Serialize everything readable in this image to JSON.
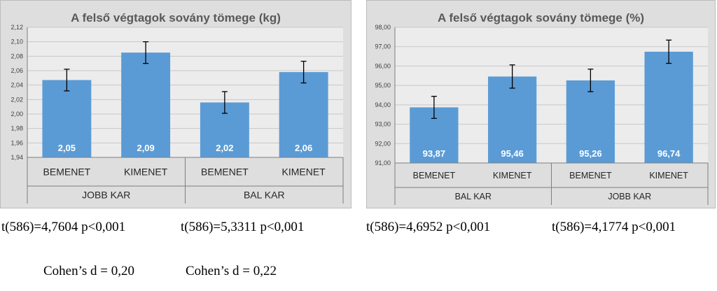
{
  "chart_data": [
    {
      "type": "bar",
      "title": "A felső végtagok sovány tömege (kg)",
      "categories": [
        "BEMENET",
        "KIMENET",
        "BEMENET",
        "KIMENET"
      ],
      "groups": [
        "JOBB KAR",
        "BAL KAR"
      ],
      "values": [
        2.047,
        2.085,
        2.016,
        2.058
      ],
      "value_labels": [
        "2,05",
        "2,09",
        "2,02",
        "2,06"
      ],
      "error": [
        0.015,
        0.015,
        0.015,
        0.015
      ],
      "ylim": [
        1.94,
        2.12
      ],
      "yticks": [
        "1,94",
        "1,96",
        "1,98",
        "2,00",
        "2,02",
        "2,04",
        "2,06",
        "2,08",
        "2,10",
        "2,12"
      ],
      "grid": true,
      "bar_color": "#5b9bd5"
    },
    {
      "type": "bar",
      "title": "A felső végtagok sovány tömege (%)",
      "categories": [
        "BEMENET",
        "KIMENET",
        "BEMENET",
        "KIMENET"
      ],
      "groups": [
        "BAL KAR",
        "JOBB KAR"
      ],
      "values": [
        93.87,
        95.46,
        95.26,
        96.74
      ],
      "value_labels": [
        "93,87",
        "95,46",
        "95,26",
        "96,74"
      ],
      "error": [
        0.57,
        0.6,
        0.58,
        0.6
      ],
      "ylim": [
        91,
        98
      ],
      "yticks": [
        "91,00",
        "92,00",
        "93,00",
        "94,00",
        "95,00",
        "96,00",
        "97,00",
        "98,00"
      ],
      "grid": true,
      "bar_color": "#5b9bd5"
    }
  ],
  "stats": {
    "t1": "t(586)=4,7604 p<0,001",
    "t2": "t(586)=5,3311 p<0,001",
    "t3": "t(586)=4,6952 p<0,001",
    "t4": "t(586)=4,1774 p<0,001",
    "d1": "Cohen’s d = 0,20",
    "d2": "Cohen’s d = 0,22"
  }
}
